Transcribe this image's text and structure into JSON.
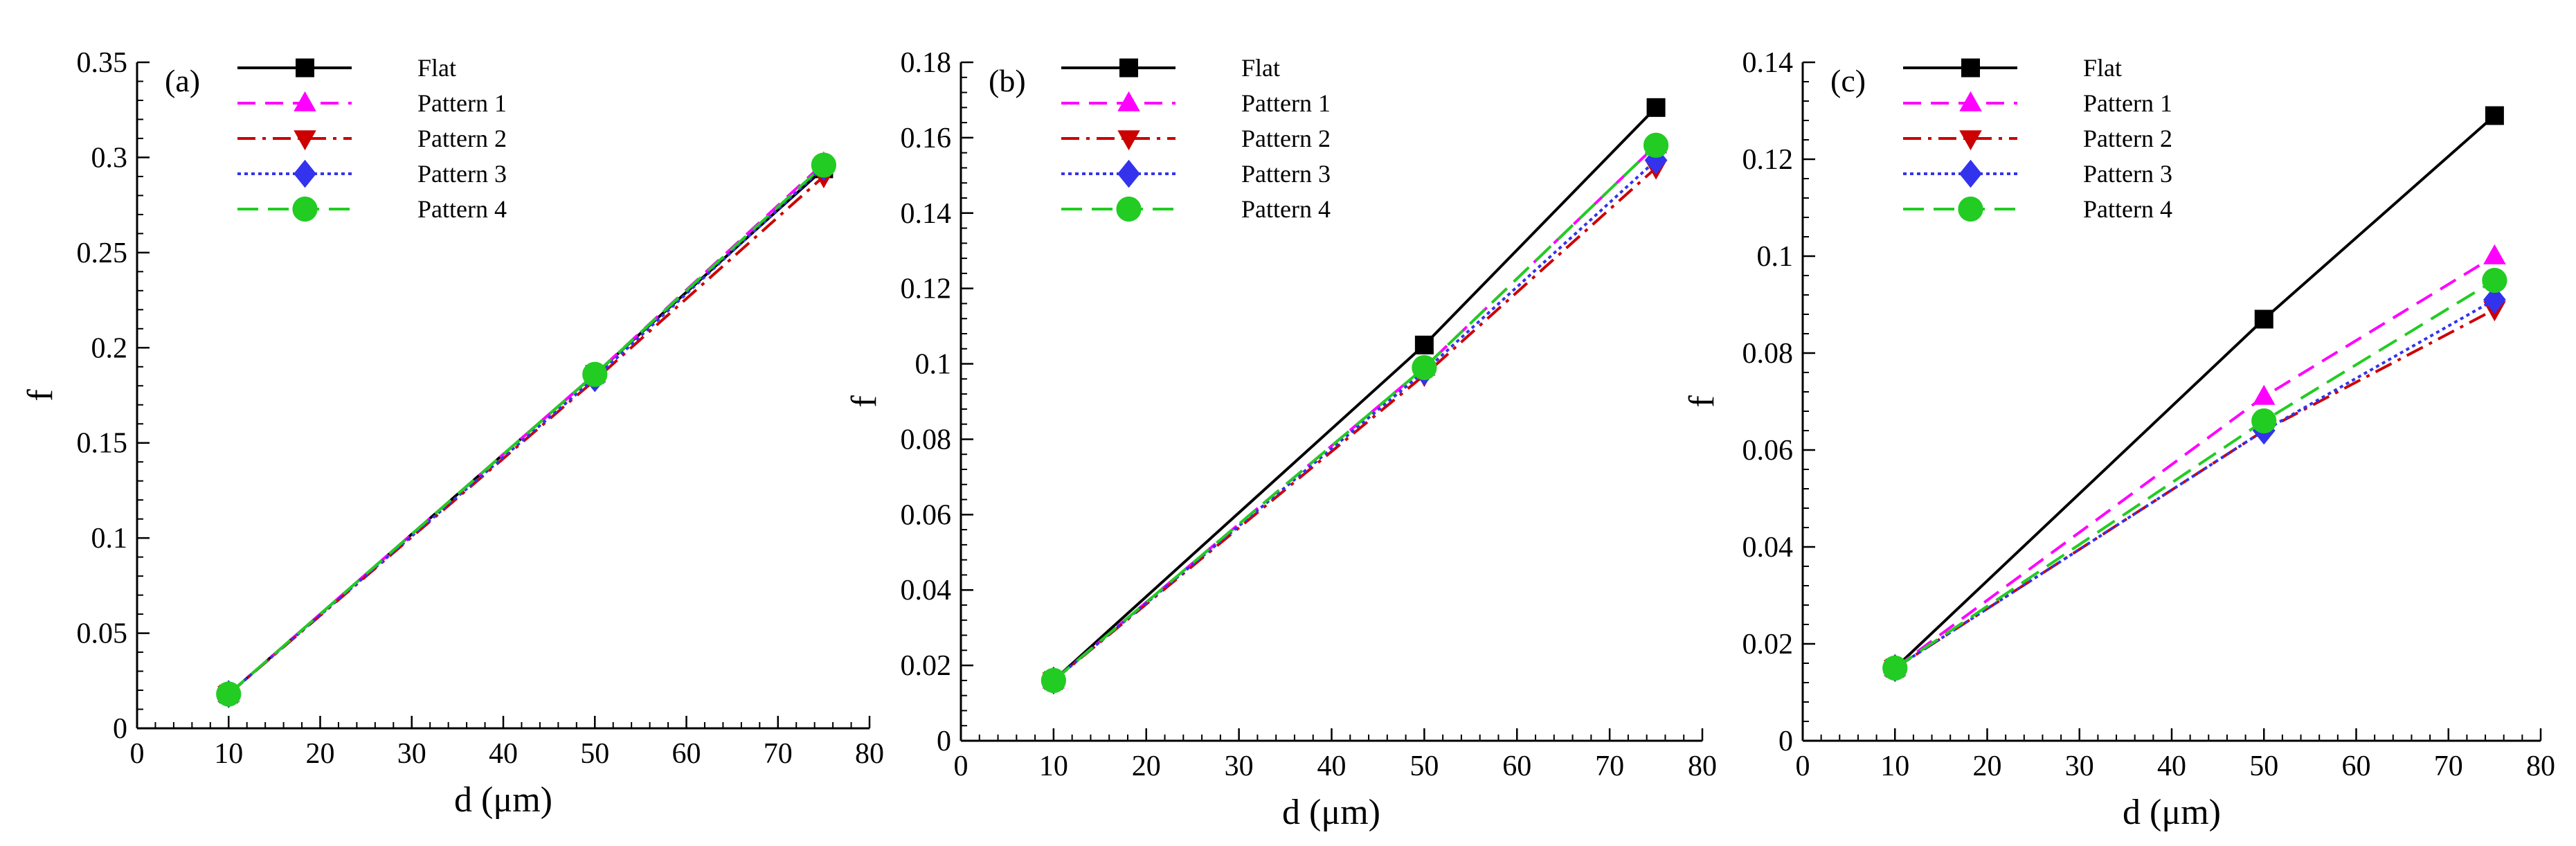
{
  "chart_data": [
    {
      "type": "line",
      "panel_label": "(a)",
      "xlabel": "d (μm)",
      "ylabel": "f",
      "xlim": [
        0,
        80
      ],
      "ylim": [
        0,
        0.35
      ],
      "x_ticks": [
        "0",
        "10",
        "20",
        "30",
        "40",
        "50",
        "60",
        "70",
        "80"
      ],
      "y_ticks": [
        "0",
        "0.05",
        "0.1",
        "0.15",
        "0.2",
        "0.25",
        "0.3",
        "0.35"
      ],
      "legend_position": "top-left",
      "x": [
        10,
        50,
        75
      ],
      "series": [
        {
          "name": "Flat",
          "values": [
            0.018,
            0.186,
            0.294
          ]
        },
        {
          "name": "Pattern 1",
          "values": [
            0.018,
            0.186,
            0.297
          ]
        },
        {
          "name": "Pattern 2",
          "values": [
            0.018,
            0.183,
            0.29
          ]
        },
        {
          "name": "Pattern 3",
          "values": [
            0.018,
            0.184,
            0.295
          ]
        },
        {
          "name": "Pattern 4",
          "values": [
            0.018,
            0.186,
            0.296
          ]
        }
      ]
    },
    {
      "type": "line",
      "panel_label": "(b)",
      "xlabel": "d (μm)",
      "ylabel": "f",
      "xlim": [
        0,
        80
      ],
      "ylim": [
        0,
        0.18
      ],
      "x_ticks": [
        "0",
        "10",
        "20",
        "30",
        "40",
        "50",
        "60",
        "70",
        "80"
      ],
      "y_ticks": [
        "0",
        "0.02",
        "0.04",
        "0.06",
        "0.08",
        "0.1",
        "0.12",
        "0.14",
        "0.16",
        "0.18"
      ],
      "legend_position": "top-left",
      "x": [
        10,
        50,
        75
      ],
      "series": [
        {
          "name": "Flat",
          "values": [
            0.016,
            0.105,
            0.168
          ]
        },
        {
          "name": "Pattern 1",
          "values": [
            0.016,
            0.099,
            0.158
          ]
        },
        {
          "name": "Pattern 2",
          "values": [
            0.016,
            0.097,
            0.152
          ]
        },
        {
          "name": "Pattern 3",
          "values": [
            0.016,
            0.098,
            0.154
          ]
        },
        {
          "name": "Pattern 4",
          "values": [
            0.016,
            0.099,
            0.158
          ]
        }
      ]
    },
    {
      "type": "line",
      "panel_label": "(c)",
      "xlabel": "d (μm)",
      "ylabel": "f",
      "xlim": [
        0,
        80
      ],
      "ylim": [
        0,
        0.14
      ],
      "x_ticks": [
        "0",
        "10",
        "20",
        "30",
        "40",
        "50",
        "60",
        "70",
        "80"
      ],
      "y_ticks": [
        "0",
        "0.02",
        "0.04",
        "0.06",
        "0.08",
        "0.1",
        "0.12",
        "0.14"
      ],
      "legend_position": "top-left",
      "x": [
        10,
        50,
        75
      ],
      "series": [
        {
          "name": "Flat",
          "values": [
            0.015,
            0.087,
            0.129
          ]
        },
        {
          "name": "Pattern 1",
          "values": [
            0.015,
            0.071,
            0.1
          ]
        },
        {
          "name": "Pattern 2",
          "values": [
            0.015,
            0.064,
            0.089
          ]
        },
        {
          "name": "Pattern 3",
          "values": [
            0.015,
            0.064,
            0.091
          ]
        },
        {
          "name": "Pattern 4",
          "values": [
            0.015,
            0.066,
            0.095
          ]
        }
      ]
    }
  ],
  "series_styles": [
    {
      "color": "#000000",
      "marker": "square"
    },
    {
      "color": "#ff00ff",
      "marker": "triangle-up"
    },
    {
      "color": "#cc0000",
      "marker": "triangle-down"
    },
    {
      "color": "#3333ee",
      "marker": "diamond"
    },
    {
      "color": "#22cc22",
      "marker": "circle"
    }
  ]
}
